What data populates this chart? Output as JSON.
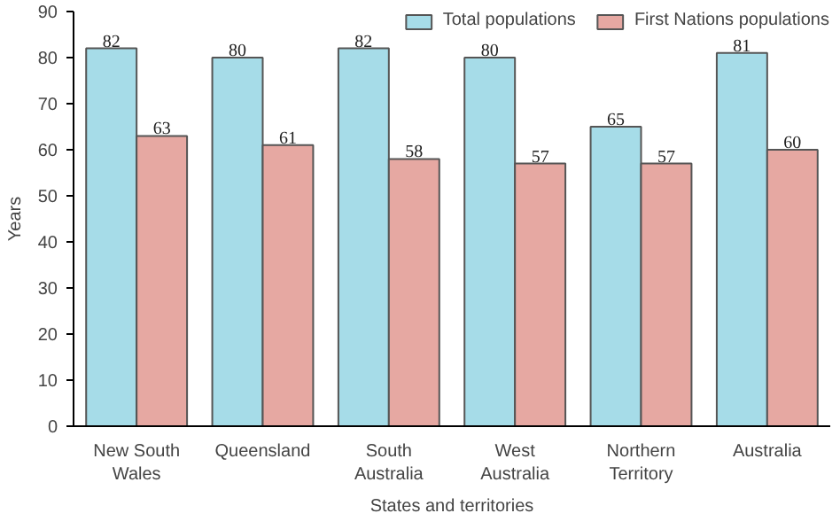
{
  "chart_data": {
    "type": "bar",
    "xlabel": "States and territories",
    "ylabel": "Years",
    "categories": [
      "New South Wales",
      "Queensland",
      "South Australia",
      "West Australia",
      "Northern Territory",
      "Australia"
    ],
    "series": [
      {
        "name": "Total populations",
        "color": "#a6dce8",
        "values": [
          82,
          80,
          82,
          80,
          65,
          81
        ]
      },
      {
        "name": "First Nations populations",
        "color": "#e6a8a2",
        "values": [
          63,
          61,
          58,
          57,
          57,
          60
        ]
      }
    ],
    "ylim": [
      0,
      90
    ],
    "yticks": [
      0,
      10,
      20,
      30,
      40,
      50,
      60,
      70,
      80,
      90
    ],
    "grid": false,
    "legend": "top right",
    "data_labels": true
  }
}
